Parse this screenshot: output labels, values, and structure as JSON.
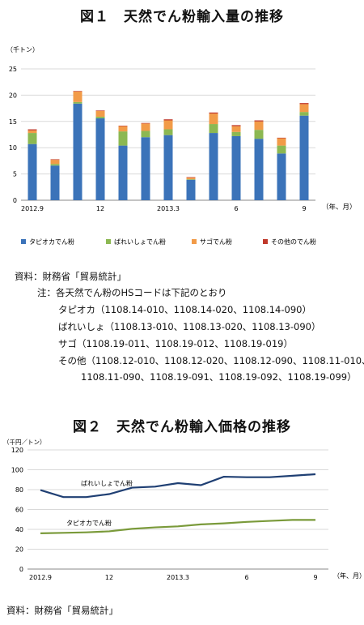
{
  "fig1": {
    "title": "図１　天然でん粉輸入量の推移",
    "unit": "（千トン）",
    "axis_suffix": "（年、月）",
    "source": "資料：財務省「貿易統計」",
    "notes": [
      "注：各天然でん粉のHSコードは下記のとおり",
      "タピオカ（1108.14-010、1108.14-020、1108.14-090）",
      "ばれいしょ（1108.13-010、1108.13-020、1108.13-090）",
      "サゴ（1108.19-011、1108.19-012、1108.19-019）",
      "その他（1108.12-010、1108.12-020、1108.12-090、1108.11-010、",
      "1108.11-090、1108.19-091、1108.19-092、1108.19-099）"
    ]
  },
  "fig2": {
    "title": "図２　天然でん粉輸入価格の推移",
    "unit": "（千円／トン）",
    "axis_suffix": "（年、月）",
    "source": "資料：財務省「貿易統計」"
  },
  "colors": {
    "tapioca": "#3b73b9",
    "potato": "#8cb852",
    "sago": "#f29b48",
    "other": "#c0392b",
    "line_potato": "#1f3f73",
    "line_tapioca": "#7a9a3a",
    "grid": "#d9d9d9",
    "axis": "#888888"
  },
  "chart_data": [
    {
      "type": "bar",
      "stacked": true,
      "title": "図１　天然でん粉輸入量の推移",
      "ylabel": "（千トン）",
      "xlabel": "（年、月）",
      "ylim": [
        0,
        25
      ],
      "yticks": [
        0,
        5,
        10,
        15,
        20,
        25
      ],
      "grid": true,
      "legend_position": "bottom",
      "categories": [
        "2012.9",
        "10",
        "11",
        "12",
        "2013.1",
        "2",
        "3",
        "4",
        "5",
        "6",
        "7",
        "8",
        "9"
      ],
      "tick_labels": [
        "2012.9",
        "",
        "",
        "12",
        "",
        "",
        "2013.3",
        "",
        "",
        "6",
        "",
        "",
        "9"
      ],
      "series": [
        {
          "name": "タピオカでん粉",
          "color_key": "tapioca",
          "values": [
            10.7,
            6.6,
            18.4,
            15.6,
            10.4,
            12.0,
            12.4,
            3.9,
            12.8,
            12.2,
            11.7,
            8.9,
            16.1
          ]
        },
        {
          "name": "ばれいしょでん粉",
          "color_key": "potato",
          "values": [
            2.1,
            0.3,
            0.3,
            0.3,
            2.7,
            1.2,
            1.1,
            0.1,
            1.7,
            0.8,
            1.7,
            1.5,
            0.7
          ]
        },
        {
          "name": "サゴでん粉",
          "color_key": "sago",
          "values": [
            0.5,
            0.8,
            2.0,
            1.1,
            1.0,
            1.4,
            1.7,
            0.3,
            2.0,
            1.1,
            1.6,
            1.4,
            1.5
          ]
        },
        {
          "name": "その他のでん粉",
          "color_key": "other",
          "values": [
            0.2,
            0.1,
            0.1,
            0.1,
            0.1,
            0.1,
            0.2,
            0.1,
            0.2,
            0.2,
            0.2,
            0.1,
            0.2
          ]
        }
      ]
    },
    {
      "type": "line",
      "title": "図２　天然でん粉輸入価格の推移",
      "ylabel": "（千円／トン）",
      "xlabel": "（年、月）",
      "ylim": [
        0,
        120
      ],
      "yticks": [
        0,
        20,
        40,
        60,
        80,
        100,
        120
      ],
      "grid": true,
      "categories": [
        "2012.9",
        "10",
        "11",
        "12",
        "2013.1",
        "2",
        "3",
        "4",
        "5",
        "6",
        "7",
        "8",
        "9"
      ],
      "tick_labels": [
        "2012.9",
        "",
        "",
        "12",
        "",
        "",
        "2013.3",
        "",
        "",
        "6",
        "",
        "",
        "9"
      ],
      "series": [
        {
          "name": "ばれいしょでん粉",
          "color_key": "line_potato",
          "values": [
            79.5,
            72.5,
            72.5,
            75.5,
            82.0,
            83.0,
            86.5,
            84.5,
            93.0,
            92.5,
            92.5,
            94.0,
            95.5
          ]
        },
        {
          "name": "タピオカでん粉",
          "color_key": "line_tapioca",
          "values": [
            36.0,
            36.5,
            37.0,
            38.0,
            40.5,
            42.0,
            43.0,
            45.0,
            46.0,
            47.5,
            48.5,
            49.5,
            49.5
          ]
        }
      ]
    }
  ]
}
